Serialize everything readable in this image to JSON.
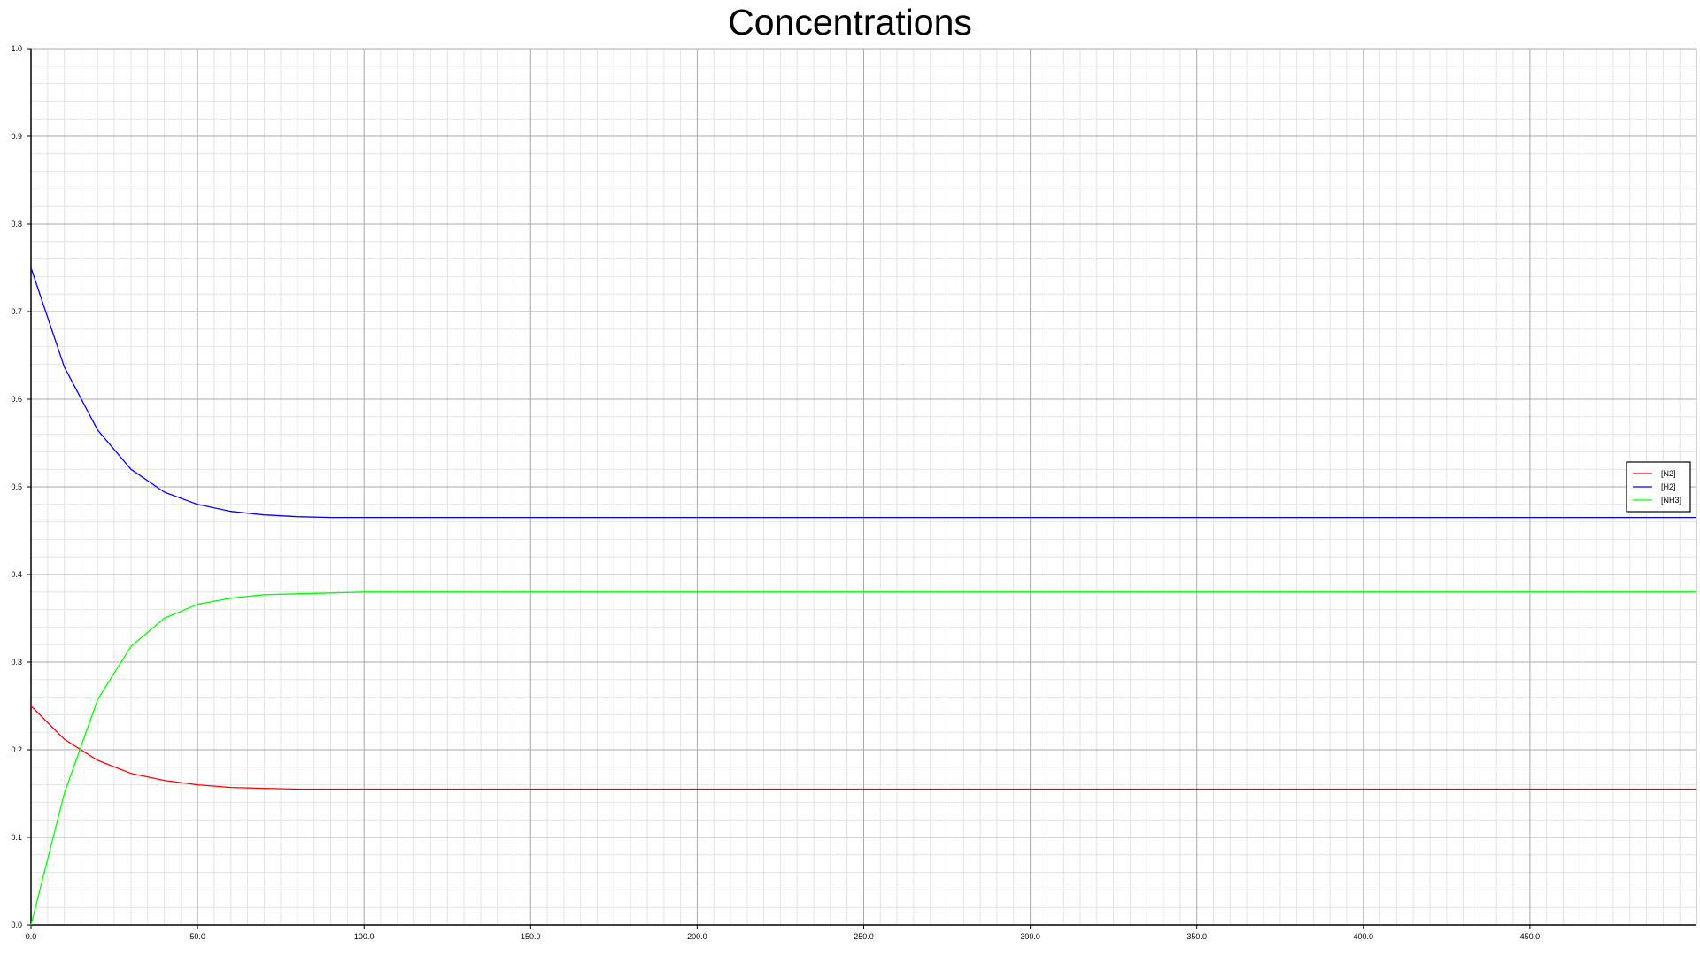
{
  "chart_data": {
    "type": "line",
    "title": "Concentrations",
    "xlabel": "",
    "ylabel": "",
    "xlim": [
      0,
      500
    ],
    "ylim": [
      0,
      1.0
    ],
    "x_ticks": [
      "0.0",
      "50.0",
      "100.0",
      "150.0",
      "200.0",
      "250.0",
      "300.0",
      "350.0",
      "400.0",
      "450.0"
    ],
    "y_ticks": [
      "0.0",
      "0.1",
      "0.2",
      "0.3",
      "0.4",
      "0.5",
      "0.6",
      "0.7",
      "0.8",
      "0.9",
      "1.0"
    ],
    "grid": true,
    "legend_position": "right",
    "series": [
      {
        "name": "[N2]",
        "color": "#ff0000",
        "x": [
          0,
          10,
          20,
          30,
          40,
          50,
          60,
          70,
          80,
          90,
          100,
          150,
          200,
          250,
          300,
          350,
          400,
          450,
          500
        ],
        "y": [
          0.25,
          0.212,
          0.188,
          0.173,
          0.165,
          0.16,
          0.157,
          0.156,
          0.155,
          0.155,
          0.155,
          0.155,
          0.155,
          0.155,
          0.155,
          0.155,
          0.155,
          0.155,
          0.155
        ]
      },
      {
        "name": "[H2]",
        "color": "#0000ff",
        "x": [
          0,
          10,
          20,
          30,
          40,
          50,
          60,
          70,
          80,
          90,
          100,
          150,
          200,
          250,
          300,
          350,
          400,
          450,
          500
        ],
        "y": [
          0.75,
          0.637,
          0.565,
          0.52,
          0.494,
          0.48,
          0.472,
          0.468,
          0.466,
          0.465,
          0.465,
          0.465,
          0.465,
          0.465,
          0.465,
          0.465,
          0.465,
          0.465,
          0.465
        ]
      },
      {
        "name": "[NH3]",
        "color": "#00ff00",
        "x": [
          0,
          10,
          20,
          30,
          40,
          50,
          60,
          70,
          80,
          90,
          100,
          150,
          200,
          250,
          300,
          350,
          400,
          450,
          500
        ],
        "y": [
          0.0,
          0.15,
          0.257,
          0.318,
          0.35,
          0.366,
          0.373,
          0.377,
          0.378,
          0.379,
          0.38,
          0.38,
          0.38,
          0.38,
          0.38,
          0.38,
          0.38,
          0.38,
          0.38
        ]
      }
    ]
  }
}
